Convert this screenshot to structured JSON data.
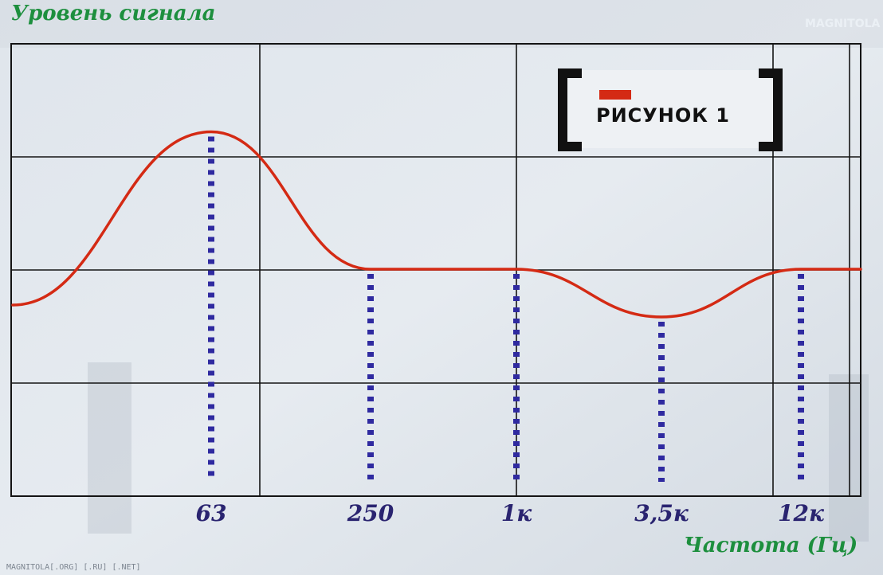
{
  "chart_data": {
    "type": "line",
    "ylabel": "Уровень сигнала",
    "xlabel": "Частота (Гц)",
    "figure_label": "РИСУНОК 1",
    "x_ticks": [
      "63",
      "250",
      "1к",
      "3,5к",
      "12к"
    ],
    "x_tick_values": [
      63,
      250,
      1000,
      3500,
      12000
    ],
    "y_gridlines": 4,
    "grid": true,
    "curve_color": "#d42a14",
    "marker_color": "#2f2aa0",
    "series": [
      {
        "points": [
          [
            20,
            -0.3
          ],
          [
            63,
            1.15
          ],
          [
            250,
            0
          ],
          [
            1000,
            0
          ],
          [
            3500,
            -0.4
          ],
          [
            12000,
            0
          ],
          [
            20000,
            0
          ]
        ]
      }
    ]
  },
  "watermarks": {
    "bottom": "MAGNITOLA[.ORG] [.RU] [.NET]",
    "top": "MAGNITOLA"
  }
}
